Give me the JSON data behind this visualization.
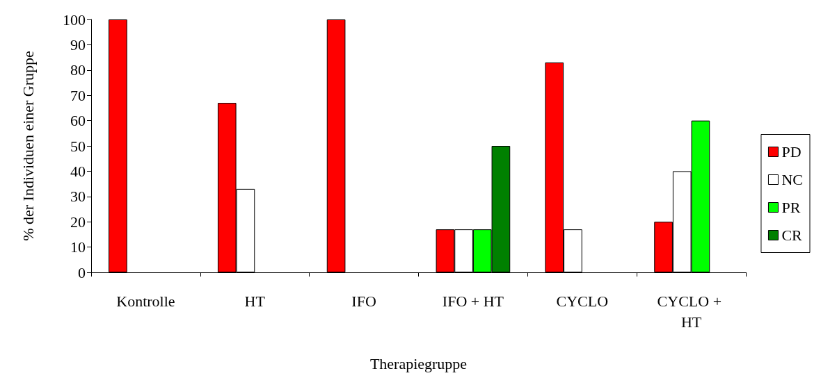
{
  "chart_data": {
    "type": "bar",
    "xlabel": "Therapiegruppe",
    "ylabel": "% der Individuen einer Gruppe",
    "categories": [
      "Kontrolle",
      "HT",
      "IFO",
      "IFO + HT",
      "CYCLO",
      "CYCLO + HT"
    ],
    "series": [
      {
        "name": "PD",
        "color": "#ff0000",
        "values": [
          100,
          67,
          100,
          17,
          83,
          20
        ]
      },
      {
        "name": "NC",
        "color": "#ffffff",
        "values": [
          0,
          33,
          0,
          17,
          17,
          40
        ]
      },
      {
        "name": "PR",
        "color": "#00ff00",
        "values": [
          0,
          0,
          0,
          17,
          0,
          60
        ]
      },
      {
        "name": "CR",
        "color": "#008000",
        "values": [
          0,
          0,
          0,
          50,
          0,
          0
        ]
      }
    ],
    "ylim": [
      0,
      100
    ],
    "yticks": [
      0,
      10,
      20,
      30,
      40,
      50,
      60,
      70,
      80,
      90,
      100
    ],
    "grid": false,
    "legend": "right"
  }
}
